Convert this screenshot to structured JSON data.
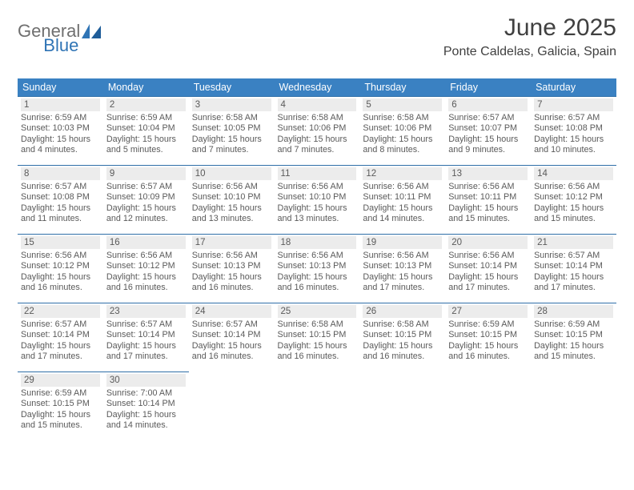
{
  "brand": {
    "word1": "General",
    "word2": "Blue"
  },
  "title": "June 2025",
  "location": "Ponte Caldelas, Galicia, Spain",
  "colors": {
    "header_bg": "#3a81c2",
    "header_text": "#ffffff",
    "row_divider": "#2f6fa8",
    "daynum_bg": "#ececec",
    "text_body": "#5a5a5a",
    "title_text": "#404040",
    "brand_gray": "#6f6f6f",
    "brand_blue": "#2f74b5",
    "page_bg": "#ffffff"
  },
  "fonts": {
    "family": "Arial",
    "title_pt": 30,
    "location_pt": 16,
    "dayhead_pt": 12.5,
    "daynum_pt": 11.5,
    "body_pt": 10.8
  },
  "day_headers": [
    "Sunday",
    "Monday",
    "Tuesday",
    "Wednesday",
    "Thursday",
    "Friday",
    "Saturday"
  ],
  "weeks": [
    [
      {
        "n": "1",
        "sr": "6:59 AM",
        "ss": "10:03 PM",
        "dl": "15 hours and 4 minutes."
      },
      {
        "n": "2",
        "sr": "6:59 AM",
        "ss": "10:04 PM",
        "dl": "15 hours and 5 minutes."
      },
      {
        "n": "3",
        "sr": "6:58 AM",
        "ss": "10:05 PM",
        "dl": "15 hours and 7 minutes."
      },
      {
        "n": "4",
        "sr": "6:58 AM",
        "ss": "10:06 PM",
        "dl": "15 hours and 7 minutes."
      },
      {
        "n": "5",
        "sr": "6:58 AM",
        "ss": "10:06 PM",
        "dl": "15 hours and 8 minutes."
      },
      {
        "n": "6",
        "sr": "6:57 AM",
        "ss": "10:07 PM",
        "dl": "15 hours and 9 minutes."
      },
      {
        "n": "7",
        "sr": "6:57 AM",
        "ss": "10:08 PM",
        "dl": "15 hours and 10 minutes."
      }
    ],
    [
      {
        "n": "8",
        "sr": "6:57 AM",
        "ss": "10:08 PM",
        "dl": "15 hours and 11 minutes."
      },
      {
        "n": "9",
        "sr": "6:57 AM",
        "ss": "10:09 PM",
        "dl": "15 hours and 12 minutes."
      },
      {
        "n": "10",
        "sr": "6:56 AM",
        "ss": "10:10 PM",
        "dl": "15 hours and 13 minutes."
      },
      {
        "n": "11",
        "sr": "6:56 AM",
        "ss": "10:10 PM",
        "dl": "15 hours and 13 minutes."
      },
      {
        "n": "12",
        "sr": "6:56 AM",
        "ss": "10:11 PM",
        "dl": "15 hours and 14 minutes."
      },
      {
        "n": "13",
        "sr": "6:56 AM",
        "ss": "10:11 PM",
        "dl": "15 hours and 15 minutes."
      },
      {
        "n": "14",
        "sr": "6:56 AM",
        "ss": "10:12 PM",
        "dl": "15 hours and 15 minutes."
      }
    ],
    [
      {
        "n": "15",
        "sr": "6:56 AM",
        "ss": "10:12 PM",
        "dl": "15 hours and 16 minutes."
      },
      {
        "n": "16",
        "sr": "6:56 AM",
        "ss": "10:12 PM",
        "dl": "15 hours and 16 minutes."
      },
      {
        "n": "17",
        "sr": "6:56 AM",
        "ss": "10:13 PM",
        "dl": "15 hours and 16 minutes."
      },
      {
        "n": "18",
        "sr": "6:56 AM",
        "ss": "10:13 PM",
        "dl": "15 hours and 16 minutes."
      },
      {
        "n": "19",
        "sr": "6:56 AM",
        "ss": "10:13 PM",
        "dl": "15 hours and 17 minutes."
      },
      {
        "n": "20",
        "sr": "6:56 AM",
        "ss": "10:14 PM",
        "dl": "15 hours and 17 minutes."
      },
      {
        "n": "21",
        "sr": "6:57 AM",
        "ss": "10:14 PM",
        "dl": "15 hours and 17 minutes."
      }
    ],
    [
      {
        "n": "22",
        "sr": "6:57 AM",
        "ss": "10:14 PM",
        "dl": "15 hours and 17 minutes."
      },
      {
        "n": "23",
        "sr": "6:57 AM",
        "ss": "10:14 PM",
        "dl": "15 hours and 17 minutes."
      },
      {
        "n": "24",
        "sr": "6:57 AM",
        "ss": "10:14 PM",
        "dl": "15 hours and 16 minutes."
      },
      {
        "n": "25",
        "sr": "6:58 AM",
        "ss": "10:15 PM",
        "dl": "15 hours and 16 minutes."
      },
      {
        "n": "26",
        "sr": "6:58 AM",
        "ss": "10:15 PM",
        "dl": "15 hours and 16 minutes."
      },
      {
        "n": "27",
        "sr": "6:59 AM",
        "ss": "10:15 PM",
        "dl": "15 hours and 16 minutes."
      },
      {
        "n": "28",
        "sr": "6:59 AM",
        "ss": "10:15 PM",
        "dl": "15 hours and 15 minutes."
      }
    ],
    [
      {
        "n": "29",
        "sr": "6:59 AM",
        "ss": "10:15 PM",
        "dl": "15 hours and 15 minutes."
      },
      {
        "n": "30",
        "sr": "7:00 AM",
        "ss": "10:14 PM",
        "dl": "15 hours and 14 minutes."
      },
      null,
      null,
      null,
      null,
      null
    ]
  ],
  "labels": {
    "sunrise": "Sunrise:",
    "sunset": "Sunset:",
    "daylight": "Daylight:"
  }
}
